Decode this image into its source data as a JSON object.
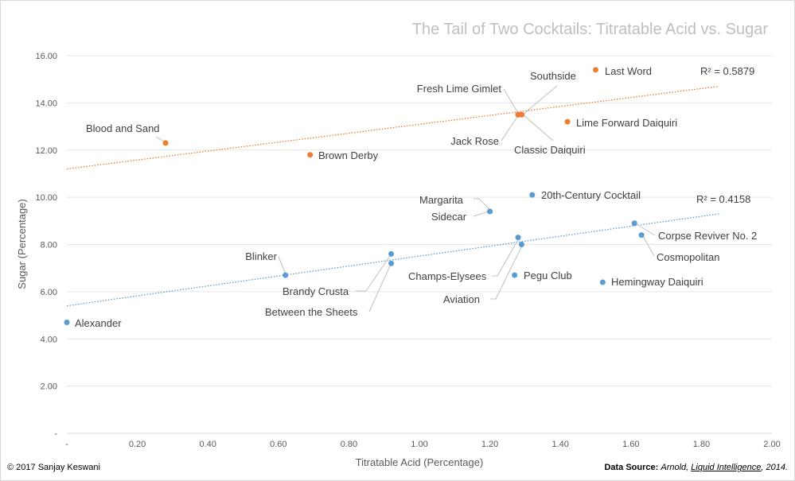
{
  "chart_data": {
    "type": "scatter",
    "title": "The Tail of Two Cocktails: Titratable Acid vs. Sugar",
    "xlabel": "Titratable Acid (Percentage)",
    "ylabel": "Sugar (Percentage)",
    "xlim": [
      0,
      2.0
    ],
    "ylim": [
      0,
      16.0
    ],
    "x_ticks": [
      "-",
      "0.20",
      "0.40",
      "0.60",
      "0.80",
      "1.00",
      "1.20",
      "1.40",
      "1.60",
      "1.80",
      "2.00"
    ],
    "y_ticks": [
      "-",
      "2.00",
      "4.00",
      "6.00",
      "8.00",
      "10.00",
      "12.00",
      "14.00",
      "16.00"
    ],
    "grid": "horizontal",
    "series": [
      {
        "color": "#ed7d31",
        "trendline": {
          "type": "linear",
          "x_range": [
            0,
            1.85
          ],
          "y_range": [
            11.2,
            14.7
          ],
          "r2_label": "R² = 0.5879"
        },
        "points": [
          {
            "label": "Blood and Sand",
            "x": 0.28,
            "y": 12.3
          },
          {
            "label": "Brown Derby",
            "x": 0.69,
            "y": 11.8
          },
          {
            "label": "Jack Rose",
            "x": 1.28,
            "y": 13.5
          },
          {
            "label": "Fresh Lime Gimlet",
            "x": 1.28,
            "y": 13.5
          },
          {
            "label": "Southside",
            "x": 1.29,
            "y": 13.5
          },
          {
            "label": "Classic Daiquiri",
            "x": 1.29,
            "y": 13.5
          },
          {
            "label": "Lime Forward Daiquiri",
            "x": 1.42,
            "y": 13.2
          },
          {
            "label": "Last Word",
            "x": 1.5,
            "y": 15.4
          }
        ]
      },
      {
        "color": "#5b9bd5",
        "trendline": {
          "type": "linear",
          "x_range": [
            0,
            1.85
          ],
          "y_range": [
            5.4,
            9.3
          ],
          "r2_label": "R² = 0.4158"
        },
        "points": [
          {
            "label": "Alexander",
            "x": 0.0,
            "y": 4.7
          },
          {
            "label": "Blinker",
            "x": 0.62,
            "y": 6.7
          },
          {
            "label": "Brandy Crusta",
            "x": 0.92,
            "y": 7.6
          },
          {
            "label": "Between the Sheets",
            "x": 0.92,
            "y": 7.2
          },
          {
            "label": "Champs-Elysees",
            "x": 1.28,
            "y": 8.3
          },
          {
            "label": "Aviation",
            "x": 1.29,
            "y": 8.0
          },
          {
            "label": "Pegu Club",
            "x": 1.27,
            "y": 6.7
          },
          {
            "label": "Sidecar",
            "x": 1.2,
            "y": 9.4
          },
          {
            "label": "Margarita",
            "x": 1.2,
            "y": 9.4
          },
          {
            "label": "20th-Century Cocktail",
            "x": 1.32,
            "y": 10.1
          },
          {
            "label": "Corpse Reviver No. 2",
            "x": 1.61,
            "y": 8.9
          },
          {
            "label": "Cosmopolitan",
            "x": 1.63,
            "y": 8.4
          },
          {
            "label": "Hemingway Daiquiri",
            "x": 1.52,
            "y": 6.4
          }
        ]
      }
    ]
  },
  "footer": {
    "copyright": "© 2017 Sanjay Keswani",
    "source_prefix": "Data Source: ",
    "source_author": "Arnold, ",
    "source_book": "Liquid Intelligence",
    "source_year": ", 2014."
  }
}
